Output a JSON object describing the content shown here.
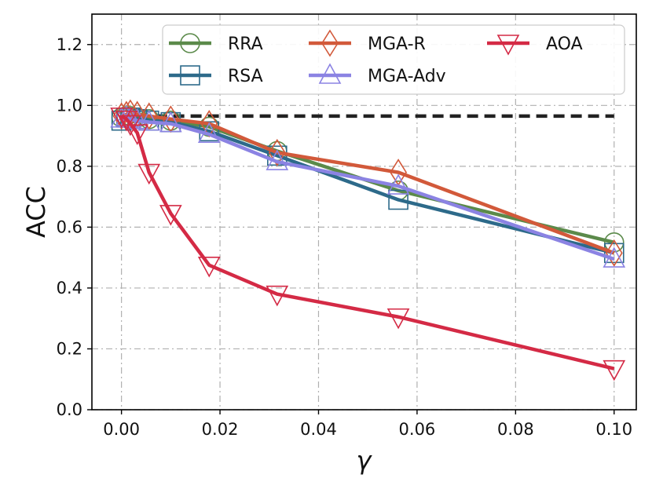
{
  "chart_data": {
    "type": "line",
    "title": "",
    "xlabel": "γ",
    "ylabel": "ACC",
    "xlim": [
      -0.006,
      0.1045
    ],
    "ylim": [
      0.0,
      1.3
    ],
    "xticks": [
      0.0,
      0.02,
      0.04,
      0.06,
      0.08,
      0.1
    ],
    "xtick_labels": [
      "0.00",
      "0.02",
      "0.04",
      "0.06",
      "0.08",
      "0.10"
    ],
    "yticks": [
      0.0,
      0.2,
      0.4,
      0.6,
      0.8,
      1.0,
      1.2
    ],
    "ytick_labels": [
      "0.0",
      "0.2",
      "0.4",
      "0.6",
      "0.8",
      "1.0",
      "1.2"
    ],
    "grid": true,
    "legend": {
      "position": "top-right",
      "columns": 3
    },
    "reference_line": {
      "y": 0.965,
      "x_range": [
        0.0,
        0.1
      ],
      "style": "dashed",
      "color": "#222222"
    },
    "x": [
      0.0,
      0.001,
      0.0018,
      0.0032,
      0.0056,
      0.01,
      0.0178,
      0.0316,
      0.0562,
      0.1
    ],
    "series": [
      {
        "name": "RRA",
        "color": "#5b8a4a",
        "marker": "circle",
        "values": [
          0.96,
          0.965,
          0.965,
          0.96,
          0.955,
          0.95,
          0.93,
          0.85,
          0.72,
          0.55
        ]
      },
      {
        "name": "RSA",
        "color": "#2d6a8a",
        "marker": "square",
        "values": [
          0.95,
          0.96,
          0.96,
          0.955,
          0.95,
          0.945,
          0.915,
          0.835,
          0.69,
          0.515
        ]
      },
      {
        "name": "MGA-R",
        "color": "#d2593a",
        "marker": "diamond",
        "values": [
          0.965,
          0.97,
          0.975,
          0.97,
          0.965,
          0.955,
          0.94,
          0.845,
          0.78,
          0.515
        ]
      },
      {
        "name": "MGA-Adv",
        "color": "#8b83e3",
        "marker": "triangle-up",
        "values": [
          0.955,
          0.96,
          0.955,
          0.95,
          0.945,
          0.94,
          0.905,
          0.815,
          0.735,
          0.495
        ]
      },
      {
        "name": "AOA",
        "color": "#d42a45",
        "marker": "triangle-down",
        "values": [
          0.965,
          0.955,
          0.94,
          0.91,
          0.78,
          0.645,
          0.475,
          0.38,
          0.305,
          0.135
        ]
      }
    ]
  }
}
